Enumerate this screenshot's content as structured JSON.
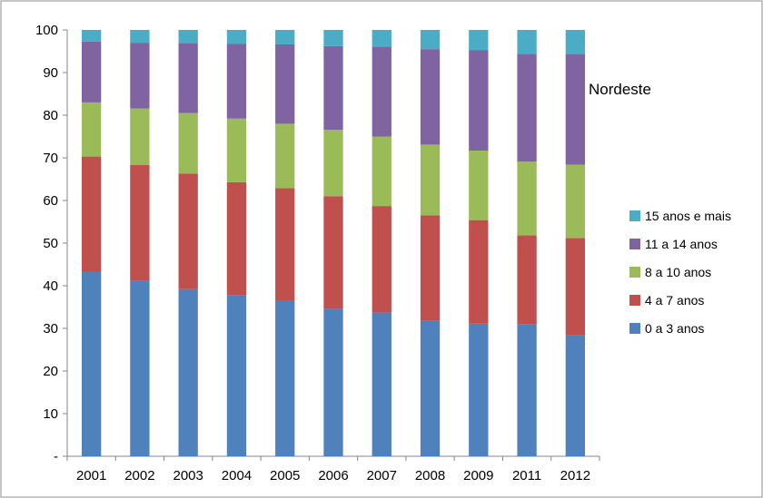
{
  "chart_data": {
    "type": "bar",
    "stacked": true,
    "title": "Nordeste",
    "categories": [
      "2001",
      "2002",
      "2003",
      "2004",
      "2005",
      "2006",
      "2007",
      "2008",
      "2009",
      "2011",
      "2012"
    ],
    "series": [
      {
        "name": "0 a 3 anos",
        "color": "#4F81BD",
        "values": [
          43.2,
          41.1,
          39.2,
          37.7,
          36.4,
          34.6,
          33.7,
          31.9,
          31.1,
          30.9,
          28.5
        ]
      },
      {
        "name": "4 a 7 anos",
        "color": "#C0504D",
        "values": [
          27.1,
          27.2,
          27.1,
          26.6,
          26.5,
          26.4,
          25.0,
          24.6,
          24.3,
          20.9,
          22.7
        ]
      },
      {
        "name": "8 a 10 anos",
        "color": "#9BBB59",
        "values": [
          12.7,
          13.3,
          14.2,
          14.9,
          15.1,
          15.6,
          16.3,
          16.6,
          16.3,
          17.3,
          17.2
        ]
      },
      {
        "name": "11 a 14 anos",
        "color": "#8064A2",
        "values": [
          14.3,
          15.4,
          16.4,
          17.5,
          18.6,
          19.6,
          21.1,
          22.4,
          23.6,
          25.3,
          26.0
        ]
      },
      {
        "name": "15 anos e mais",
        "color": "#4BACC6",
        "values": [
          2.7,
          3.0,
          3.1,
          3.3,
          3.4,
          3.8,
          3.9,
          4.5,
          4.7,
          5.6,
          5.6
        ]
      }
    ],
    "ylim": [
      0,
      100
    ],
    "yticks": [
      "-",
      "10",
      "20",
      "30",
      "40",
      "50",
      "60",
      "70",
      "80",
      "90",
      "100"
    ],
    "legend_order": [
      "15 anos e mais",
      "11 a 14 anos",
      "8 a 10 anos",
      "4 a 7 anos",
      "0 a 3 anos"
    ],
    "legend_position": "right",
    "grid": false
  }
}
